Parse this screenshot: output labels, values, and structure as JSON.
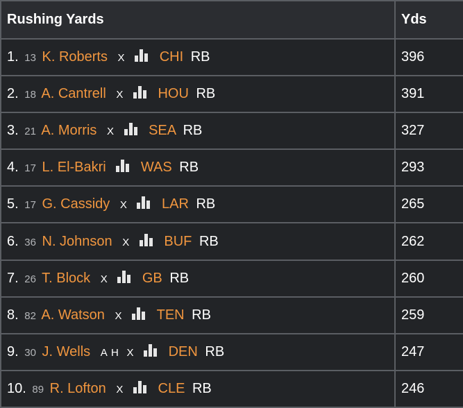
{
  "table": {
    "header_title": "Rushing Yards",
    "header_yds": "Yds",
    "rows": [
      {
        "rank": "1.",
        "number": "13",
        "player": "K. Roberts",
        "status": "",
        "remove": "X",
        "team": "CHI",
        "pos": "RB",
        "yds": "396"
      },
      {
        "rank": "2.",
        "number": "18",
        "player": "A. Cantrell",
        "status": "",
        "remove": "X",
        "team": "HOU",
        "pos": "RB",
        "yds": "391"
      },
      {
        "rank": "3.",
        "number": "21",
        "player": "A. Morris",
        "status": "",
        "remove": "X",
        "team": "SEA",
        "pos": "RB",
        "yds": "327"
      },
      {
        "rank": "4.",
        "number": "17",
        "player": "L. El-Bakri",
        "status": "",
        "remove": "",
        "team": "WAS",
        "pos": "RB",
        "yds": "293"
      },
      {
        "rank": "5.",
        "number": "17",
        "player": "G. Cassidy",
        "status": "",
        "remove": "X",
        "team": "LAR",
        "pos": "RB",
        "yds": "265"
      },
      {
        "rank": "6.",
        "number": "36",
        "player": "N. Johnson",
        "status": "",
        "remove": "X",
        "team": "BUF",
        "pos": "RB",
        "yds": "262"
      },
      {
        "rank": "7.",
        "number": "26",
        "player": "T. Block",
        "status": "",
        "remove": "X",
        "team": "GB",
        "pos": "RB",
        "yds": "260"
      },
      {
        "rank": "8.",
        "number": "82",
        "player": "A. Watson",
        "status": "",
        "remove": "X",
        "team": "TEN",
        "pos": "RB",
        "yds": "259"
      },
      {
        "rank": "9.",
        "number": "30",
        "player": "J. Wells",
        "status": "A H",
        "remove": "X",
        "team": "DEN",
        "pos": "RB",
        "yds": "247"
      },
      {
        "rank": "10.",
        "number": "89",
        "player": "R. Lofton",
        "status": "",
        "remove": "X",
        "team": "CLE",
        "pos": "RB",
        "yds": "246"
      }
    ]
  },
  "icons": {
    "stats": "bar-chart-icon"
  },
  "colors": {
    "accent": "#f1963f",
    "background": "#222427",
    "border": "#5b5e63"
  }
}
